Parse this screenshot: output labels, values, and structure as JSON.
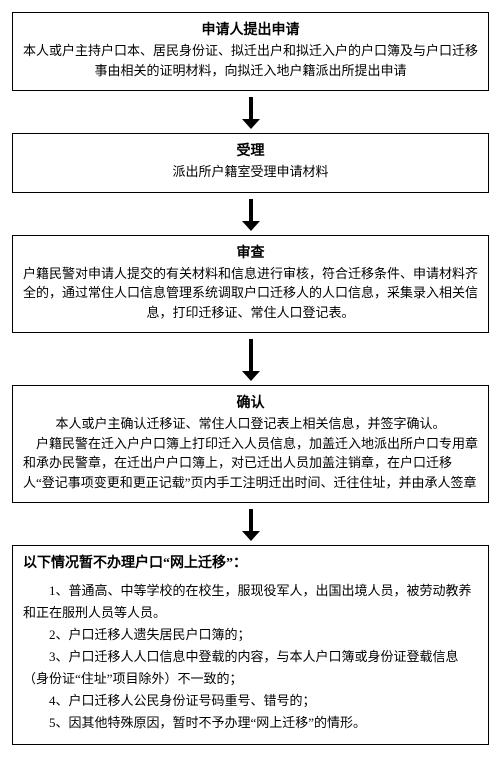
{
  "flow": {
    "border_color": "#000000",
    "background_color": "#ffffff",
    "title_fontsize": 14,
    "body_fontsize": 13,
    "arrow": {
      "stem_height": 22,
      "head_width": 18,
      "head_height": 10,
      "fill": "#000000"
    },
    "steps": [
      {
        "id": "step1",
        "title": "申请人提出申请",
        "body": "本人或户主持户口本、居民身份证、拟迁出户和拟迁入户的户口簿及与户口迁移事由相关的证明材料，向拟迁入地户籍派出所提出申请"
      },
      {
        "id": "step2",
        "title": "受理",
        "body": "派出所户籍室受理申请材料"
      },
      {
        "id": "step3",
        "title": "审查",
        "body": "户籍民警对申请人提交的有关材料和信息进行审核，符合迁移条件、申请材料齐全的，通过常住人口信息管理系统调取户口迁移人的人口信息，采集录入相关信息，打印迁移证、常住人口登记表。"
      },
      {
        "id": "step4",
        "title": "确认",
        "body": "本人或户主确认迁移证、常住人口登记表上相关信息，并签字确认。\n户籍民警在迁入户户口簿上打印迁入人员信息，加盖迁入地派出所户口专用章和承办民警章，在迁出户户口簿上，对已迁出人员加盖注销章，在户口迁移人“登记事项变更和更正记载”页内手工注明迁出时间、迁往住址，并由承人签章"
      }
    ],
    "exceptions": {
      "id": "exceptions",
      "title": "以下情况暂不办理户口“网上迁移”：",
      "items": [
        "1、普通高、中等学校的在校生，服现役军人，出国出境人员，被劳动教养和正在服刑人员等人员。",
        "2、户口迁移人遗失居民户口簿的；",
        "3、户口迁移人人口信息中登载的内容，与本人户口簿或身份证登载信息（身份证“住址”项目除外）不一致的；",
        "4、户口迁移人公民身份证号码重号、错号的；",
        "5、因其他特殊原因，暂时不予办理“网上迁移”的情形。"
      ]
    }
  }
}
